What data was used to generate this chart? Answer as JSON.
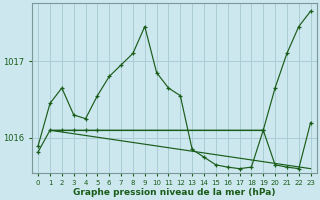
{
  "xlabel": "Graphe pression niveau de la mer (hPa)",
  "background_color": "#cce8ee",
  "grid_color": "#aacdd6",
  "line_color": "#1a5c1a",
  "spine_color": "#7a9898",
  "yticks": [
    1016,
    1017
  ],
  "ylim": [
    1015.55,
    1017.75
  ],
  "xlim": [
    -0.5,
    23.5
  ],
  "xticks": [
    0,
    1,
    2,
    3,
    4,
    5,
    6,
    7,
    8,
    9,
    10,
    11,
    12,
    13,
    14,
    15,
    16,
    17,
    18,
    19,
    20,
    21,
    22,
    23
  ],
  "series1_x": [
    0,
    1,
    2,
    3,
    4,
    5,
    6,
    7,
    8,
    9,
    10,
    11,
    12,
    13,
    14,
    15,
    16,
    17,
    18,
    19,
    20,
    21,
    22,
    23
  ],
  "series1_y": [
    1015.9,
    1016.45,
    1016.65,
    1016.3,
    1016.25,
    1016.55,
    1016.8,
    1016.95,
    1017.1,
    1017.45,
    1016.85,
    1016.65,
    1016.55,
    1015.85,
    1015.75,
    1015.65,
    1015.62,
    1015.6,
    1015.62,
    1016.1,
    1016.65,
    1017.1,
    1017.45,
    1017.65
  ],
  "series2_x": [
    0,
    1,
    2,
    3,
    4,
    5,
    19,
    20,
    21,
    22,
    23
  ],
  "series2_y": [
    1015.82,
    1016.1,
    1016.1,
    1016.1,
    1016.1,
    1016.1,
    1016.1,
    1015.65,
    1015.62,
    1015.6,
    1016.2
  ],
  "hline_y": 1016.1,
  "hline_x_start": 1,
  "hline_x_end": 19
}
